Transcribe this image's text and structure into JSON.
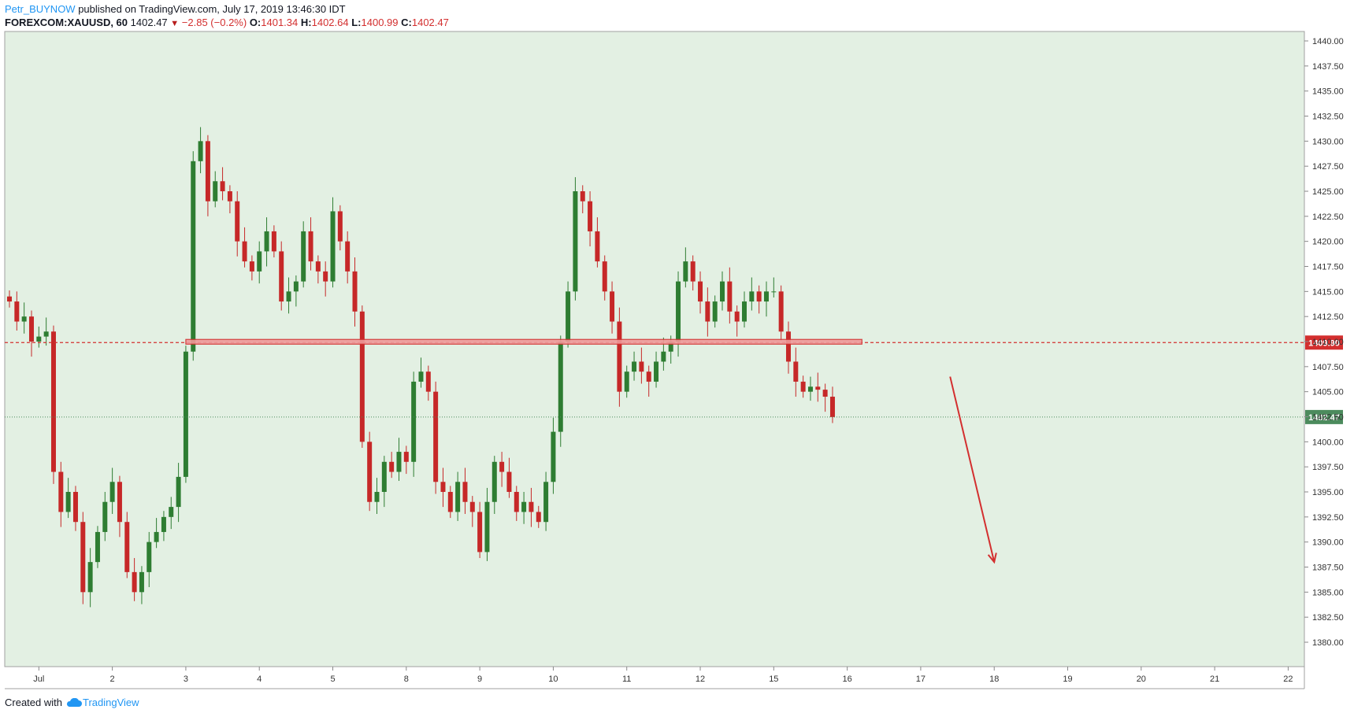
{
  "header": {
    "author": "Petr_BUYNOW",
    "published": "published on TradingView.com, July 17, 2019 13:46:30 IDT",
    "symbol": "FOREXCOM:XAUUSD, 60",
    "last": "1402.47",
    "change": "−2.85 (−0.2%)",
    "o_label": "O:",
    "o": "1401.34",
    "h_label": "H:",
    "h": "1402.64",
    "l_label": "L:",
    "l": "1400.99",
    "c_label": "C:",
    "c": "1402.47"
  },
  "footer": {
    "created_with": "Created with",
    "brand": "TradingView"
  },
  "colors": {
    "background": "#e3f0e3",
    "up": "#2e7d32",
    "down": "#c62828",
    "level": "#d32f2f",
    "price": "#4c8b5d"
  },
  "chart_data": {
    "type": "candlestick",
    "symbol": "FOREXCOM:XAUUSD",
    "interval": "60",
    "y_axis": {
      "min": 1380.0,
      "max": 1440.0,
      "ticks": [
        "1440.00",
        "1437.50",
        "1435.00",
        "1432.50",
        "1430.00",
        "1427.50",
        "1425.00",
        "1422.50",
        "1420.00",
        "1417.50",
        "1415.00",
        "1412.50",
        "1410.00",
        "1407.50",
        "1405.00",
        "1402.50",
        "1400.00",
        "1397.50",
        "1395.00",
        "1392.50",
        "1390.00",
        "1387.50",
        "1385.00",
        "1382.50",
        "1380.00"
      ]
    },
    "x_axis": {
      "labels": [
        "Jul",
        "2",
        "3",
        "4",
        "5",
        "8",
        "9",
        "10",
        "11",
        "12",
        "15",
        "16",
        "17",
        "18",
        "19",
        "20",
        "21",
        "22"
      ],
      "label_index": [
        4,
        14,
        24,
        34,
        44,
        54,
        64,
        74,
        84,
        94,
        104,
        114,
        124,
        134,
        144,
        154,
        164,
        174
      ]
    },
    "support_level": {
      "value": 1409.9,
      "label": "1409.90",
      "zone_from_index": 24,
      "zone_to_index": 116
    },
    "current_price": {
      "value": 1402.47,
      "label": "1402.47"
    },
    "projection_arrow": {
      "from_index": 128,
      "from_value": 1406.5,
      "to_index": 134,
      "to_value": 1388.0
    },
    "closes": [
      1414,
      1412,
      1412.5,
      1410,
      1410.5,
      1411,
      1397,
      1393,
      1395,
      1392,
      1385,
      1388,
      1391,
      1394,
      1396,
      1392,
      1387,
      1385,
      1387,
      1390,
      1391,
      1392.5,
      1393.5,
      1396.5,
      1409,
      1428,
      1430,
      1424,
      1426,
      1425,
      1424,
      1420,
      1418,
      1417,
      1419,
      1421,
      1419,
      1414,
      1415,
      1416,
      1421,
      1418,
      1417,
      1416,
      1423,
      1420,
      1417,
      1413,
      1400,
      1394,
      1395,
      1398,
      1397,
      1399,
      1398,
      1406,
      1407,
      1405,
      1396,
      1395,
      1393,
      1396,
      1394,
      1393,
      1389,
      1394,
      1398,
      1397,
      1395,
      1393,
      1394,
      1393,
      1392,
      1396,
      1401,
      1410,
      1415,
      1425,
      1424,
      1421,
      1418,
      1415,
      1412,
      1405,
      1407,
      1408,
      1407,
      1406,
      1408,
      1409,
      1410,
      1416,
      1418,
      1416,
      1414,
      1412,
      1414,
      1416,
      1413,
      1412,
      1414,
      1415,
      1414,
      1415,
      1415,
      1411,
      1408,
      1406,
      1405,
      1405.5,
      1405.2,
      1404.5,
      1402.47
    ]
  }
}
